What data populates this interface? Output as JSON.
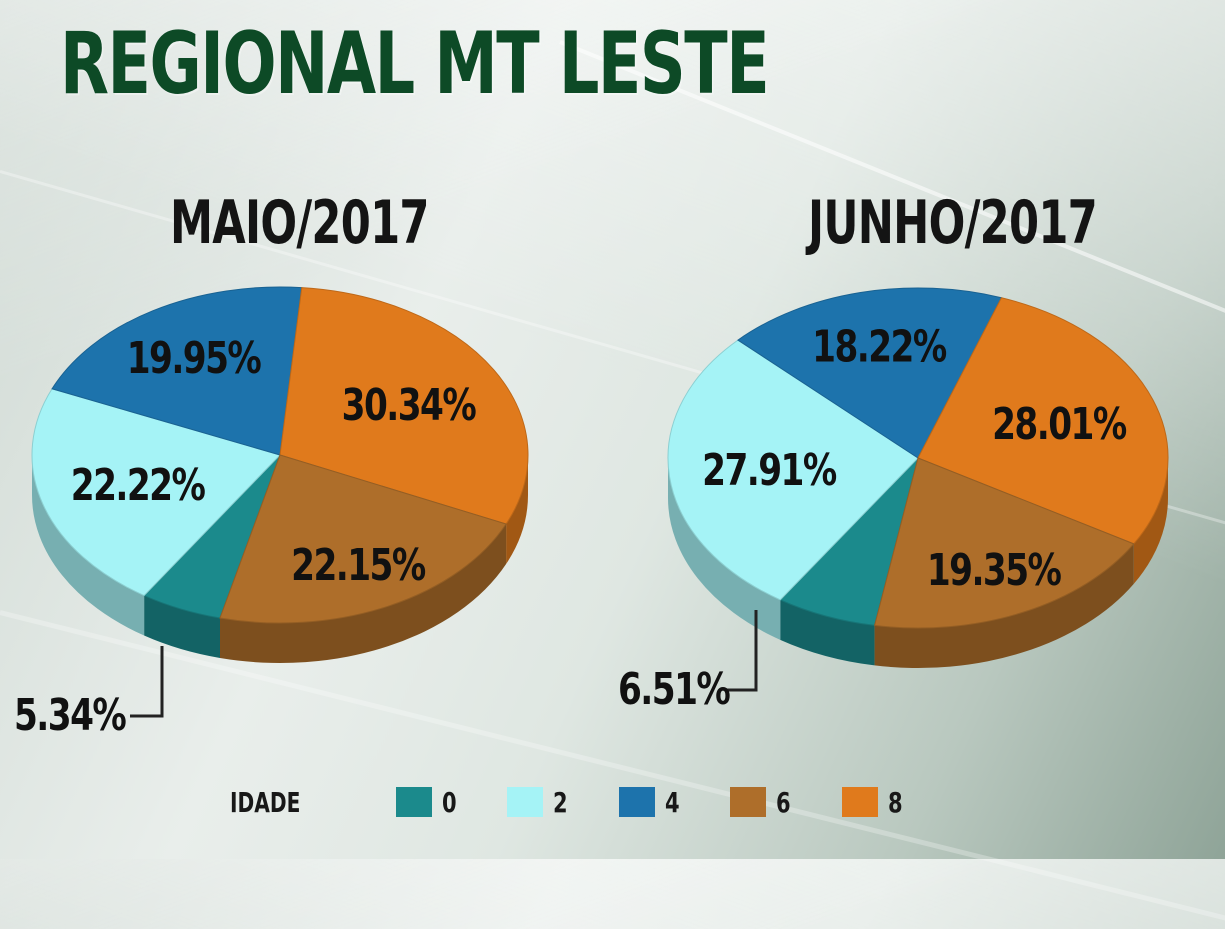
{
  "title": "REGIONAL MT LESTE",
  "colors": {
    "0": "#1b8a8c",
    "2": "#a5f3f6",
    "4": "#1d73ac",
    "6": "#ae6e2a",
    "8": "#e07a1c",
    "title": "#0d4a26"
  },
  "legend": {
    "title": "IDADE",
    "items": [
      {
        "label": "0",
        "color": "#1b8a8c"
      },
      {
        "label": "2",
        "color": "#a5f3f6"
      },
      {
        "label": "4",
        "color": "#1d73ac"
      },
      {
        "label": "6",
        "color": "#ae6e2a"
      },
      {
        "label": "8",
        "color": "#e07a1c"
      }
    ]
  },
  "chart_data": [
    {
      "type": "pie",
      "title": "MAIO/2017",
      "legend_title": "IDADE",
      "categories": [
        "0",
        "2",
        "4",
        "6",
        "8"
      ],
      "values": [
        5.34,
        22.22,
        19.95,
        22.15,
        30.34
      ],
      "labels": [
        "5.34%",
        "22.22%",
        "19.95%",
        "22.15%",
        "30.34%"
      ],
      "legend_position": "bottom"
    },
    {
      "type": "pie",
      "title": "JUNHO/2017",
      "legend_title": "IDADE",
      "categories": [
        "0",
        "2",
        "4",
        "6",
        "8"
      ],
      "values": [
        6.51,
        27.91,
        18.22,
        19.35,
        28.01
      ],
      "labels": [
        "6.51%",
        "27.91%",
        "18.22%",
        "19.35%",
        "28.01%"
      ],
      "legend_position": "bottom"
    }
  ]
}
